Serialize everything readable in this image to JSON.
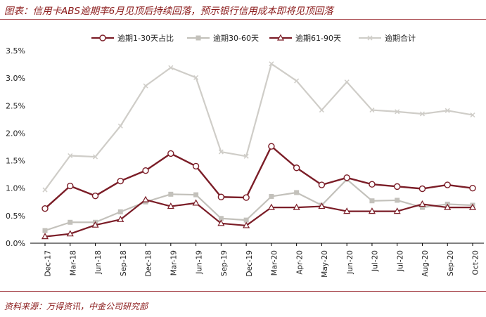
{
  "title": "图表：信用卡ABS逾期率6月见顶后持续回落，预示银行信用成本即将见顶回落",
  "source": "资料来源：万得资讯，中金公司研究部",
  "chart_data": {
    "type": "line",
    "x": [
      "Dec-17",
      "Mar-18",
      "Jun-18",
      "Sep-18",
      "Dec-18",
      "Mar-19",
      "Jun-19",
      "Sep-19",
      "Dec-19",
      "Mar-20",
      "Apr-20",
      "May-20",
      "Jun-20",
      "Jul-20",
      "Jul-20",
      "Aug-20",
      "Sep-20",
      "Oct-20"
    ],
    "ylim": [
      0,
      3.5
    ],
    "yticks": [
      "0.0%",
      "0.5%",
      "1.0%",
      "1.5%",
      "2.0%",
      "2.5%",
      "3.0%",
      "3.5%"
    ],
    "grid": false,
    "legend_position": "top",
    "series": [
      {
        "name": "逾期1-30天占比",
        "color": "#7b1d27",
        "marker": "circle",
        "values": [
          0.63,
          1.04,
          0.86,
          1.13,
          1.32,
          1.63,
          1.4,
          0.84,
          0.83,
          1.76,
          1.37,
          1.06,
          1.19,
          1.07,
          1.03,
          0.99,
          1.06,
          1.0
        ]
      },
      {
        "name": "逾期30-60天",
        "color": "#c3c1bb",
        "marker": "square",
        "values": [
          0.23,
          0.38,
          0.38,
          0.57,
          0.75,
          0.89,
          0.88,
          0.45,
          0.42,
          0.85,
          0.92,
          0.69,
          1.16,
          0.77,
          0.78,
          0.65,
          0.71,
          0.69
        ]
      },
      {
        "name": "逾期61-90天",
        "color": "#7b1d27",
        "marker": "triangle",
        "values": [
          0.12,
          0.17,
          0.33,
          0.43,
          0.79,
          0.67,
          0.73,
          0.36,
          0.32,
          0.65,
          0.65,
          0.67,
          0.58,
          0.58,
          0.58,
          0.71,
          0.65,
          0.65
        ]
      },
      {
        "name": "逾期合计",
        "color": "#cfcdc8",
        "marker": "x",
        "values": [
          0.97,
          1.59,
          1.57,
          2.13,
          2.86,
          3.19,
          3.01,
          1.66,
          1.58,
          3.26,
          2.95,
          2.42,
          2.93,
          2.42,
          2.39,
          2.35,
          2.41,
          2.33
        ]
      }
    ]
  }
}
